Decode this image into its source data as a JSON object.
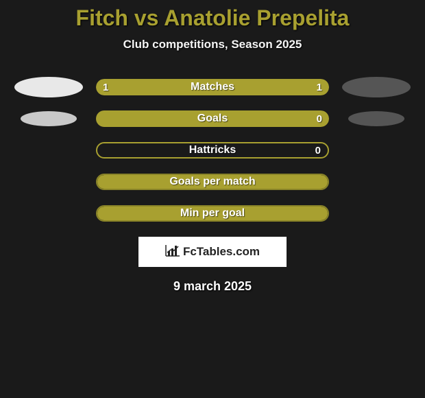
{
  "colors": {
    "background": "#1a1a1a",
    "title": "#a8a030",
    "text_light": "#f5f5f5",
    "bar_olive": "#a8a030",
    "olive_dark": "#8a8428",
    "ellipse_grey_light": "#e8e8e8",
    "ellipse_grey_mid": "#c9c9c9",
    "ellipse_grey_dark": "#555555",
    "white": "#ffffff"
  },
  "header": {
    "title": "Fitch vs Anatolie Prepelita",
    "subtitle": "Club competitions, Season 2025"
  },
  "stats": [
    {
      "label": "Matches",
      "left_value": "1",
      "right_value": "1",
      "left_pct": 50,
      "right_pct": 50,
      "left_fill": "#a8a030",
      "right_fill": "#a8a030",
      "left_ellipse": "#e8e8e8",
      "left_ellipse_size": "big",
      "right_ellipse": "#555555",
      "right_ellipse_size": "big",
      "border_style": "none"
    },
    {
      "label": "Goals",
      "left_value": "",
      "right_value": "0",
      "left_pct": 0,
      "right_pct": 100,
      "left_fill": "#a8a030",
      "right_fill": "#a8a030",
      "left_ellipse": "#c9c9c9",
      "left_ellipse_size": "small",
      "right_ellipse": "#555555",
      "right_ellipse_size": "small",
      "border_style": "none"
    },
    {
      "label": "Hattricks",
      "left_value": "",
      "right_value": "0",
      "left_pct": 0,
      "right_pct": 0,
      "left_fill": "",
      "right_fill": "",
      "left_ellipse": "",
      "right_ellipse": "",
      "border_style": "outline"
    },
    {
      "label": "Goals per match",
      "left_value": "",
      "right_value": "",
      "left_pct": 100,
      "right_pct": 0,
      "left_fill": "#a8a030",
      "right_fill": "",
      "left_ellipse": "",
      "right_ellipse": "",
      "border_style": "filled"
    },
    {
      "label": "Min per goal",
      "left_value": "",
      "right_value": "",
      "left_pct": 100,
      "right_pct": 0,
      "left_fill": "#a8a030",
      "right_fill": "",
      "left_ellipse": "",
      "right_ellipse": "",
      "border_style": "filled"
    }
  ],
  "brand": {
    "text": "FcTables.com",
    "icon": "chart-bar-icon"
  },
  "footer": {
    "date": "9 march 2025"
  },
  "typography": {
    "title_fontsize": 32,
    "subtitle_fontsize": 17,
    "label_fontsize": 16,
    "value_fontsize": 15,
    "brand_fontsize": 17,
    "date_fontsize": 18
  }
}
